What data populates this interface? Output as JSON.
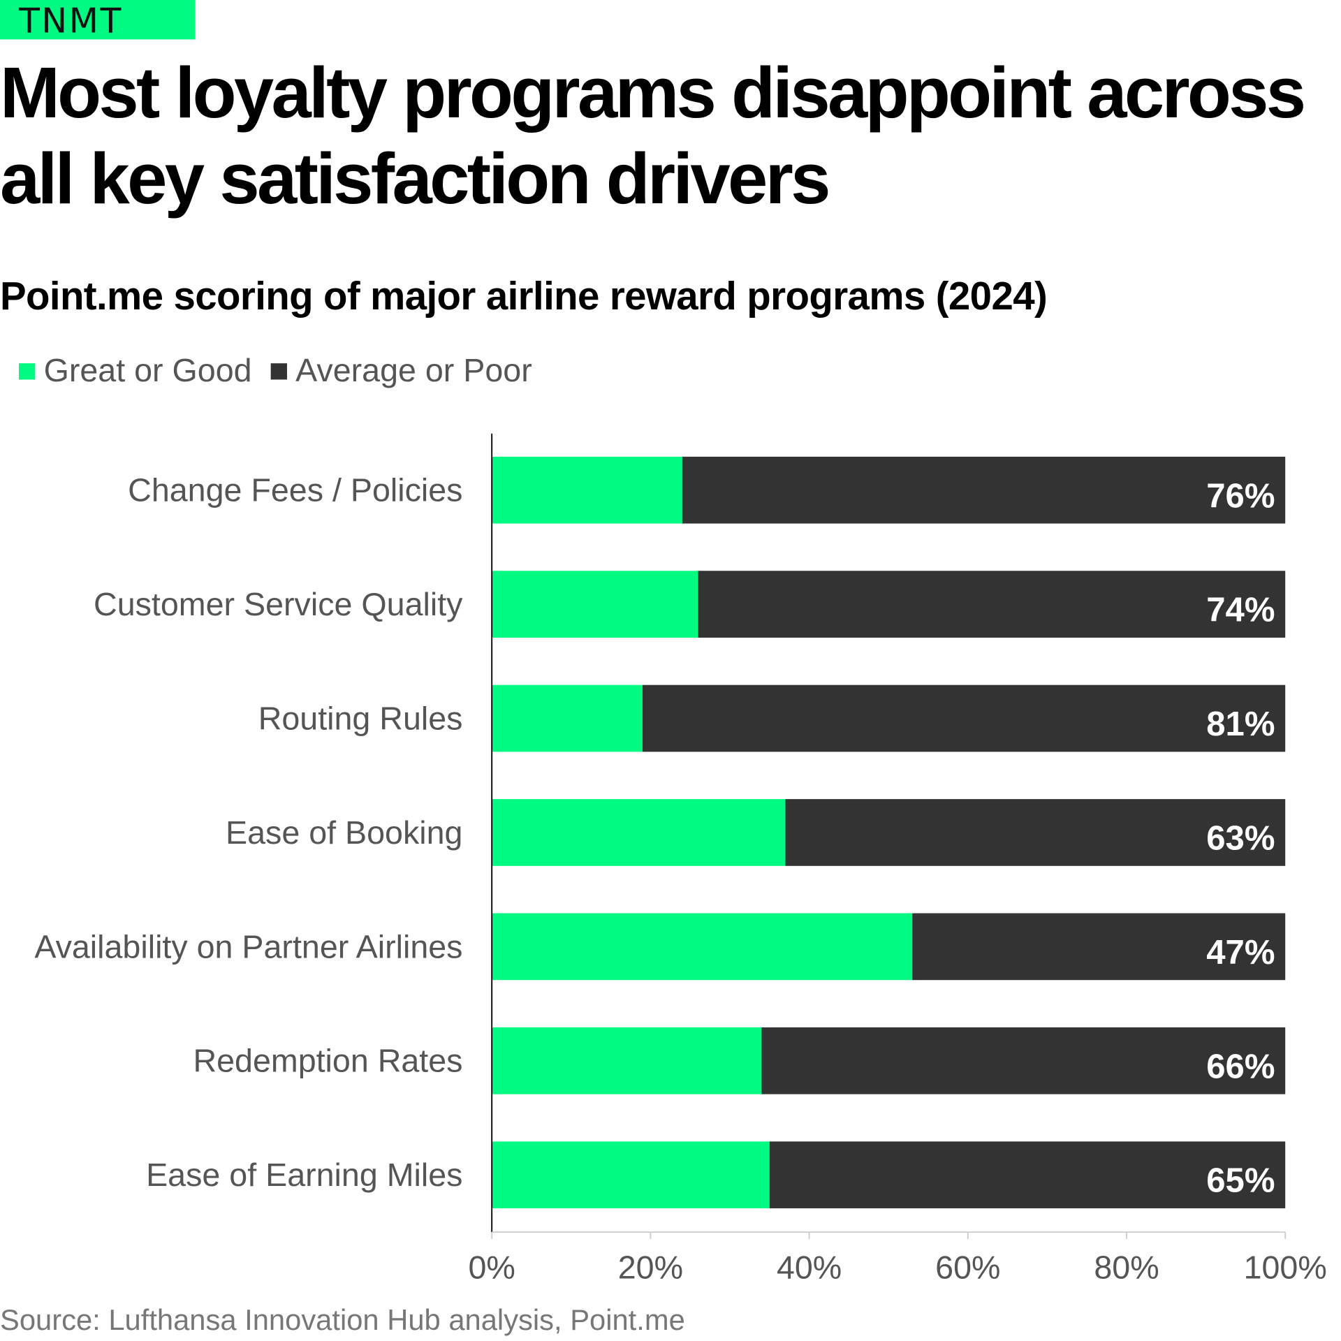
{
  "logo": "TNMT",
  "title": "Most loyalty programs disappoint across all key satisfaction drivers",
  "subtitle": "Point.me scoring of major airline reward programs (2024)",
  "source": "Source: Lufthansa Innovation Hub analysis, Point.me",
  "colors": {
    "great": "#00FA82",
    "poor": "#333333"
  },
  "chart_data": {
    "type": "bar",
    "orientation": "horizontal",
    "stacked": true,
    "categories": [
      "Change Fees / Policies",
      "Customer Service Quality",
      "Routing Rules",
      "Ease of Booking",
      "Availability on Partner Airlines",
      "Redemption Rates",
      "Ease of Earning Miles"
    ],
    "series": [
      {
        "name": "Great or Good",
        "values": [
          24,
          26,
          19,
          37,
          53,
          34,
          35
        ]
      },
      {
        "name": "Average or Poor",
        "values": [
          76,
          74,
          81,
          63,
          47,
          66,
          65
        ]
      }
    ],
    "data_labels": [
      "76%",
      "74%",
      "81%",
      "63%",
      "47%",
      "66%",
      "65%"
    ],
    "xticks": [
      "0%",
      "20%",
      "40%",
      "60%",
      "80%",
      "100%"
    ],
    "xlim": [
      0,
      100
    ],
    "legend": "top-left",
    "grid": false
  }
}
